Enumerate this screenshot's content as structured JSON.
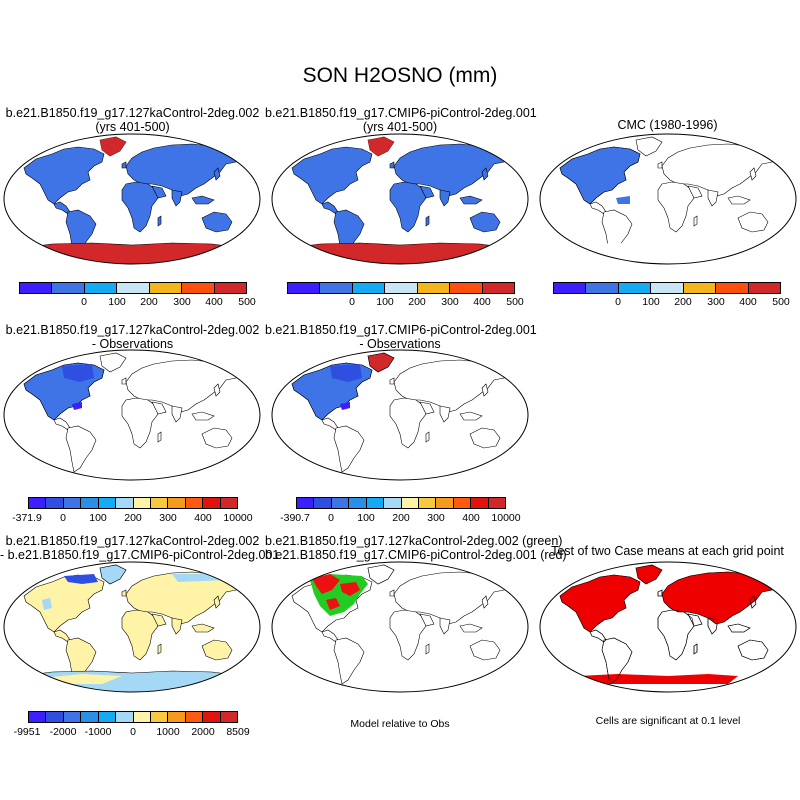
{
  "main_title": "SON H2OSNO (mm)",
  "panels": {
    "p1": {
      "title1": "b.e21.B1850.f19_g17.127kaControl-2deg.002",
      "title2": "(yrs 401-500)"
    },
    "p2": {
      "title1": "b.e21.B1850.f19_g17.CMIP6-piControl-2deg.001",
      "title2": "(yrs 401-500)"
    },
    "p3": {
      "title1": "CMC (1980-1996)"
    },
    "p4": {
      "title1": "b.e21.B1850.f19_g17.127kaControl-2deg.002",
      "title2": "- Observations"
    },
    "p5": {
      "title1": "b.e21.B1850.f19_g17.CMIP6-piControl-2deg.001",
      "title2": "- Observations"
    },
    "p7": {
      "title1": "b.e21.B1850.f19_g17.127kaControl-2deg.002",
      "title2": "- b.e21.B1850.f19_g17.CMIP6-piControl-2deg.001"
    },
    "p8": {
      "title1": "b.e21.B1850.f19_g17.127kaControl-2deg.002 (green)",
      "title2": "b.e21.B1850.f19_g17.CMIP6-piControl-2deg.001 (red)"
    },
    "p9": {
      "title1": "Test of two Case means at each grid point"
    }
  },
  "notes": {
    "model_relative": "Model relative to Obs",
    "significance": "Cells are significant at 0.1 level"
  },
  "colorbars": {
    "abs": {
      "colors": [
        "#3d1eff",
        "#3f74e6",
        "#14aaf4",
        "#c8e6f5",
        "#f4b41c",
        "#ff4f0f",
        "#d2282a"
      ],
      "ticks": [
        "0",
        "100",
        "200",
        "300",
        "400",
        "500"
      ]
    },
    "diff_obs_1": {
      "colors": [
        "#3d1eff",
        "#2e4fe0",
        "#3f74e6",
        "#2a8fe6",
        "#14aaf4",
        "#a4d8f4",
        "#fff3a8",
        "#f8c840",
        "#f49a1c",
        "#ff5a10",
        "#e0140c",
        "#d2282a"
      ],
      "ticks": [
        "-371.9",
        "0",
        "100",
        "200",
        "300",
        "400",
        "10000"
      ]
    },
    "diff_obs_2": {
      "colors": [
        "#3d1eff",
        "#2e4fe0",
        "#3f74e6",
        "#2a8fe6",
        "#14aaf4",
        "#a4d8f4",
        "#fff3a8",
        "#f8c840",
        "#f49a1c",
        "#ff5a10",
        "#e0140c",
        "#d2282a"
      ],
      "ticks": [
        "-390.7",
        "0",
        "100",
        "200",
        "300",
        "400",
        "10000"
      ]
    },
    "diff_case": {
      "colors": [
        "#3d1eff",
        "#2e4fe0",
        "#3f74e6",
        "#2a8fe6",
        "#14aaf4",
        "#a4d8f4",
        "#fff3a8",
        "#f8c840",
        "#f49a1c",
        "#ff5a10",
        "#e0140c",
        "#d2282a"
      ],
      "ticks": [
        "-9951",
        "-2000",
        "-1000",
        "0",
        "1000",
        "2000",
        "8509"
      ]
    }
  }
}
